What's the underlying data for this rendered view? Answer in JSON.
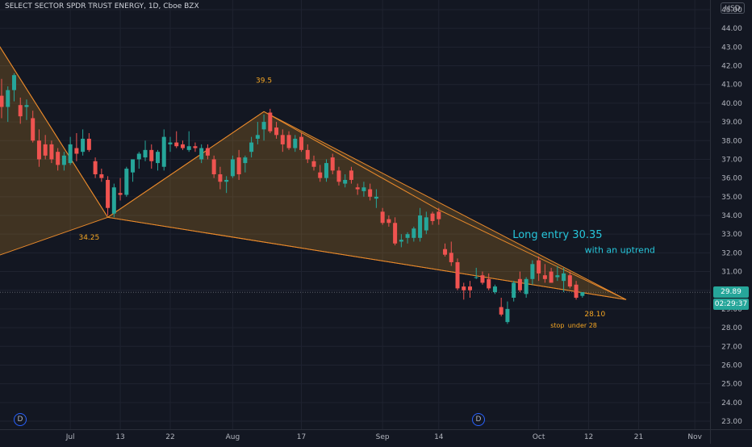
{
  "symbol_title": "SELECT SECTOR SPDR TRUST ENERGY, 1D, Cboe BZX",
  "currency": "USD",
  "last_price": "29.89",
  "countdown": "02:29:37",
  "colors": {
    "up": "#26a69a",
    "down": "#ef5350",
    "pattern_fill": "#f5a623",
    "pattern_line": "#e8892b",
    "text_orange": "#f5a623",
    "text_teal": "#26c6da",
    "axis_text": "#b2b5be",
    "grid": "#1f2330",
    "price_line": "#5d606b"
  },
  "event_markers": [
    "D",
    "D"
  ],
  "chart_data": {
    "type": "candlestick",
    "x_ticks": [
      "Jul",
      "13",
      "22",
      "Aug",
      "17",
      "Sep",
      "14",
      "Oct",
      "12",
      "21",
      "Nov"
    ],
    "y_ticks": [
      "23.00",
      "24.00",
      "25.00",
      "26.00",
      "27.00",
      "28.00",
      "29.00",
      "30.00",
      "31.00",
      "32.00",
      "33.00",
      "34.00",
      "35.00",
      "36.00",
      "37.00",
      "38.00",
      "39.00",
      "40.00",
      "41.00",
      "42.00",
      "43.00",
      "44.00",
      "45.00"
    ],
    "ylim": [
      22.7,
      45.3
    ],
    "grid": true,
    "candles": [
      {
        "o": 40.4,
        "h": 41.3,
        "l": 39.2,
        "c": 39.8
      },
      {
        "o": 39.8,
        "h": 40.9,
        "l": 39.0,
        "c": 40.7
      },
      {
        "o": 40.7,
        "h": 41.6,
        "l": 40.1,
        "c": 41.5
      },
      {
        "o": 39.9,
        "h": 40.3,
        "l": 38.9,
        "c": 39.3
      },
      {
        "o": 39.8,
        "h": 40.2,
        "l": 39.1,
        "c": 39.9
      },
      {
        "o": 39.2,
        "h": 39.6,
        "l": 37.9,
        "c": 38.0
      },
      {
        "o": 38.0,
        "h": 38.6,
        "l": 36.6,
        "c": 37.0
      },
      {
        "o": 37.8,
        "h": 38.3,
        "l": 37.0,
        "c": 37.2
      },
      {
        "o": 37.8,
        "h": 38.0,
        "l": 36.8,
        "c": 37.0
      },
      {
        "o": 37.4,
        "h": 37.6,
        "l": 36.4,
        "c": 36.7
      },
      {
        "o": 36.7,
        "h": 37.4,
        "l": 36.4,
        "c": 37.2
      },
      {
        "o": 36.8,
        "h": 38.2,
        "l": 36.7,
        "c": 37.8
      },
      {
        "o": 37.6,
        "h": 38.4,
        "l": 36.9,
        "c": 37.3
      },
      {
        "o": 37.4,
        "h": 38.6,
        "l": 37.2,
        "c": 38.1
      },
      {
        "o": 38.1,
        "h": 38.4,
        "l": 37.4,
        "c": 37.5
      },
      {
        "o": 36.9,
        "h": 37.1,
        "l": 36.0,
        "c": 36.2
      },
      {
        "o": 36.2,
        "h": 36.5,
        "l": 35.8,
        "c": 36.0
      },
      {
        "o": 35.9,
        "h": 36.1,
        "l": 34.0,
        "c": 34.4
      },
      {
        "o": 34.1,
        "h": 35.7,
        "l": 33.9,
        "c": 35.5
      },
      {
        "o": 35.2,
        "h": 36.0,
        "l": 34.8,
        "c": 35.1
      },
      {
        "o": 35.1,
        "h": 36.6,
        "l": 35.0,
        "c": 36.5
      },
      {
        "o": 36.3,
        "h": 37.0,
        "l": 35.8,
        "c": 37.0
      },
      {
        "o": 37.0,
        "h": 37.4,
        "l": 36.5,
        "c": 37.3
      },
      {
        "o": 37.1,
        "h": 38.0,
        "l": 36.9,
        "c": 37.5
      },
      {
        "o": 37.5,
        "h": 37.8,
        "l": 36.5,
        "c": 36.9
      },
      {
        "o": 36.8,
        "h": 37.5,
        "l": 36.4,
        "c": 37.4
      },
      {
        "o": 36.6,
        "h": 38.6,
        "l": 36.4,
        "c": 38.2
      },
      {
        "o": 37.8,
        "h": 38.2,
        "l": 37.4,
        "c": 37.9
      },
      {
        "o": 37.9,
        "h": 38.5,
        "l": 37.6,
        "c": 37.7
      },
      {
        "o": 37.8,
        "h": 38.0,
        "l": 37.5,
        "c": 37.6
      },
      {
        "o": 37.5,
        "h": 38.5,
        "l": 37.4,
        "c": 37.7
      },
      {
        "o": 37.7,
        "h": 37.9,
        "l": 37.4,
        "c": 37.6
      },
      {
        "o": 37.0,
        "h": 37.8,
        "l": 36.8,
        "c": 37.6
      },
      {
        "o": 37.6,
        "h": 37.8,
        "l": 37.0,
        "c": 37.2
      },
      {
        "o": 37.0,
        "h": 37.2,
        "l": 36.0,
        "c": 36.2
      },
      {
        "o": 36.2,
        "h": 36.6,
        "l": 35.4,
        "c": 35.8
      },
      {
        "o": 35.8,
        "h": 36.1,
        "l": 35.2,
        "c": 35.9
      },
      {
        "o": 36.1,
        "h": 37.2,
        "l": 36.0,
        "c": 37.0
      },
      {
        "o": 37.1,
        "h": 37.5,
        "l": 35.9,
        "c": 36.2
      },
      {
        "o": 36.8,
        "h": 37.2,
        "l": 36.3,
        "c": 37.1
      },
      {
        "o": 37.4,
        "h": 38.2,
        "l": 37.1,
        "c": 37.9
      },
      {
        "o": 38.1,
        "h": 39.0,
        "l": 37.8,
        "c": 38.3
      },
      {
        "o": 38.6,
        "h": 39.4,
        "l": 38.0,
        "c": 39.0
      },
      {
        "o": 39.5,
        "h": 39.7,
        "l": 38.4,
        "c": 38.5
      },
      {
        "o": 38.7,
        "h": 39.0,
        "l": 38.1,
        "c": 38.3
      },
      {
        "o": 38.3,
        "h": 38.6,
        "l": 37.4,
        "c": 37.8
      },
      {
        "o": 38.3,
        "h": 38.5,
        "l": 37.5,
        "c": 37.6
      },
      {
        "o": 37.6,
        "h": 38.3,
        "l": 37.4,
        "c": 38.1
      },
      {
        "o": 38.2,
        "h": 38.4,
        "l": 37.4,
        "c": 37.5
      },
      {
        "o": 37.5,
        "h": 37.8,
        "l": 36.8,
        "c": 37.0
      },
      {
        "o": 36.9,
        "h": 37.2,
        "l": 36.4,
        "c": 36.6
      },
      {
        "o": 36.3,
        "h": 36.7,
        "l": 35.8,
        "c": 36.0
      },
      {
        "o": 36.0,
        "h": 37.0,
        "l": 35.8,
        "c": 36.8
      },
      {
        "o": 37.1,
        "h": 37.3,
        "l": 36.2,
        "c": 36.4
      },
      {
        "o": 36.4,
        "h": 36.6,
        "l": 35.6,
        "c": 35.8
      },
      {
        "o": 35.7,
        "h": 36.2,
        "l": 35.5,
        "c": 35.9
      },
      {
        "o": 36.4,
        "h": 36.6,
        "l": 35.7,
        "c": 35.9
      },
      {
        "o": 35.5,
        "h": 35.7,
        "l": 35.1,
        "c": 35.4
      },
      {
        "o": 35.3,
        "h": 35.8,
        "l": 35.0,
        "c": 35.5
      },
      {
        "o": 35.4,
        "h": 35.7,
        "l": 34.8,
        "c": 35.0
      },
      {
        "o": 34.9,
        "h": 35.4,
        "l": 34.4,
        "c": 35.0
      },
      {
        "o": 34.2,
        "h": 34.4,
        "l": 33.5,
        "c": 33.6
      },
      {
        "o": 33.8,
        "h": 34.0,
        "l": 33.4,
        "c": 33.6
      },
      {
        "o": 33.6,
        "h": 33.9,
        "l": 32.4,
        "c": 32.5
      },
      {
        "o": 32.6,
        "h": 33.0,
        "l": 32.3,
        "c": 32.7
      },
      {
        "o": 32.8,
        "h": 33.1,
        "l": 32.5,
        "c": 33.0
      },
      {
        "o": 32.8,
        "h": 33.4,
        "l": 32.6,
        "c": 33.3
      },
      {
        "o": 32.8,
        "h": 34.4,
        "l": 32.6,
        "c": 34.0
      },
      {
        "o": 33.2,
        "h": 34.2,
        "l": 33.0,
        "c": 33.9
      },
      {
        "o": 34.1,
        "h": 34.2,
        "l": 33.5,
        "c": 33.7
      },
      {
        "o": 34.2,
        "h": 34.4,
        "l": 33.5,
        "c": 33.8
      },
      {
        "o": 32.2,
        "h": 32.5,
        "l": 31.8,
        "c": 31.9
      },
      {
        "o": 32.0,
        "h": 32.6,
        "l": 31.3,
        "c": 31.5
      },
      {
        "o": 31.5,
        "h": 31.7,
        "l": 30.0,
        "c": 30.1
      },
      {
        "o": 30.2,
        "h": 30.4,
        "l": 29.5,
        "c": 30.0
      },
      {
        "o": 30.2,
        "h": 30.5,
        "l": 29.6,
        "c": 30.0
      },
      {
        "o": 30.7,
        "h": 31.2,
        "l": 30.6,
        "c": 30.7
      },
      {
        "o": 30.8,
        "h": 31.0,
        "l": 30.3,
        "c": 30.4
      },
      {
        "o": 30.6,
        "h": 30.9,
        "l": 30.0,
        "c": 30.1
      },
      {
        "o": 29.9,
        "h": 30.3,
        "l": 29.8,
        "c": 30.2
      },
      {
        "o": 29.1,
        "h": 29.6,
        "l": 28.6,
        "c": 28.7
      },
      {
        "o": 28.3,
        "h": 29.4,
        "l": 28.2,
        "c": 29.0
      },
      {
        "o": 29.6,
        "h": 30.5,
        "l": 29.4,
        "c": 30.4
      },
      {
        "o": 30.6,
        "h": 31.0,
        "l": 29.9,
        "c": 30.0
      },
      {
        "o": 29.8,
        "h": 30.7,
        "l": 29.6,
        "c": 30.6
      },
      {
        "o": 30.6,
        "h": 31.6,
        "l": 30.3,
        "c": 31.4
      },
      {
        "o": 31.6,
        "h": 31.8,
        "l": 30.5,
        "c": 30.9
      },
      {
        "o": 30.8,
        "h": 31.4,
        "l": 30.4,
        "c": 30.6
      },
      {
        "o": 31.0,
        "h": 31.2,
        "l": 30.4,
        "c": 30.4
      },
      {
        "o": 30.7,
        "h": 31.3,
        "l": 30.5,
        "c": 30.8
      },
      {
        "o": 30.5,
        "h": 31.2,
        "l": 29.9,
        "c": 30.9
      },
      {
        "o": 30.8,
        "h": 31.0,
        "l": 30.1,
        "c": 30.2
      },
      {
        "o": 30.3,
        "h": 30.5,
        "l": 29.5,
        "c": 29.6
      },
      {
        "o": 29.7,
        "h": 29.9,
        "l": 29.6,
        "c": 29.9
      }
    ],
    "pattern_points": [
      {
        "i": -1,
        "p": 43.4
      },
      {
        "i": -1,
        "p": 31.8
      },
      {
        "i": 17,
        "p": 33.9
      },
      {
        "i": 42,
        "p": 39.55
      },
      {
        "i": 70,
        "p": 34.3
      },
      {
        "i": 100,
        "p": 29.5
      }
    ],
    "annotations": [
      {
        "text": "39.5",
        "i": 42,
        "p": 41.1,
        "style": "orange"
      },
      {
        "text": "34.25",
        "i": 14,
        "p": 32.7,
        "style": "orange"
      },
      {
        "text": "28.10",
        "i": 95,
        "p": 28.6,
        "style": "orange"
      },
      {
        "text": "stop",
        "i": 89,
        "p": 28.0,
        "style": "orange-small"
      },
      {
        "text": "under 28",
        "i": 93,
        "p": 28.0,
        "style": "orange-small"
      },
      {
        "text": "Long entry 30.35",
        "i": 89,
        "p": 32.8,
        "style": "teal-large"
      },
      {
        "text": "with an uptrend",
        "i": 99,
        "p": 32.0,
        "style": "teal"
      }
    ]
  }
}
